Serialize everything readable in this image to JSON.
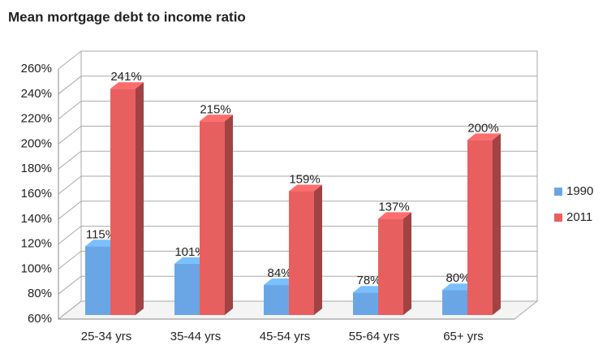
{
  "chart_data": {
    "type": "bar3d",
    "title": "Mean mortgage debt to income ratio",
    "categories": [
      "25-34 yrs",
      "35-44 yrs",
      "45-54 yrs",
      "55-64 yrs",
      "65+ yrs"
    ],
    "series": [
      {
        "name": "1990",
        "color": "#6aa6e6",
        "values": [
          115,
          101,
          84,
          78,
          80
        ],
        "value_labels": [
          "115%",
          "101%",
          "84%",
          "78%",
          "80%"
        ]
      },
      {
        "name": "2011",
        "color": "#e85f5f",
        "values": [
          241,
          215,
          159,
          137,
          200
        ],
        "value_labels": [
          "241%",
          "215%",
          "159%",
          "137%",
          "200%"
        ]
      }
    ],
    "ylim": [
      60,
      260
    ],
    "yticks": [
      {
        "value": 60,
        "label": "60%"
      },
      {
        "value": 80,
        "label": "80%"
      },
      {
        "value": 100,
        "label": "100%"
      },
      {
        "value": 120,
        "label": "120%"
      },
      {
        "value": 140,
        "label": "140%"
      },
      {
        "value": 160,
        "label": "160%"
      },
      {
        "value": 180,
        "label": "180%"
      },
      {
        "value": 200,
        "label": "200%"
      },
      {
        "value": 220,
        "label": "220%"
      },
      {
        "value": 240,
        "label": "240%"
      },
      {
        "value": 260,
        "label": "260%"
      }
    ],
    "grid": true,
    "legend": "right"
  }
}
